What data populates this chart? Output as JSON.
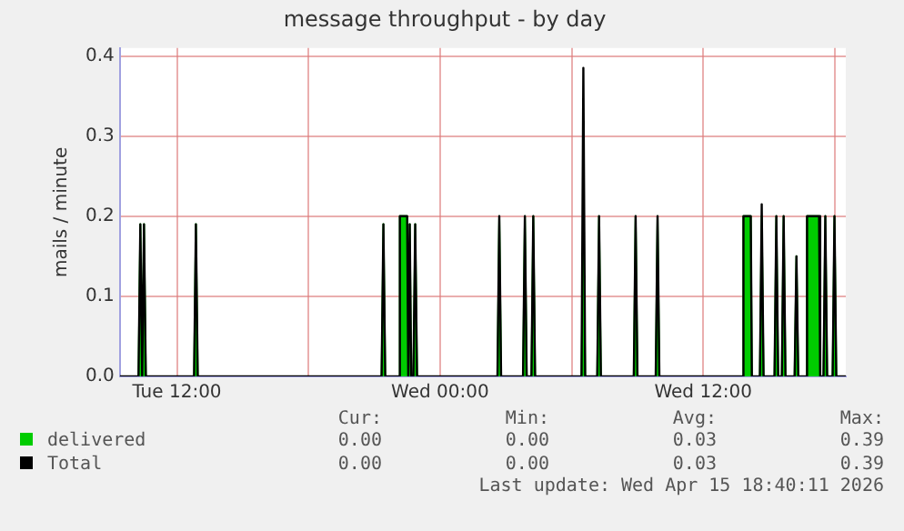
{
  "chart_data": {
    "type": "line",
    "title": "message throughput - by day",
    "ylabel": "mails / minute",
    "x": [
      "2026-04-14T09:24",
      "2026-04-14T10:15",
      "2026-04-14T10:20",
      "2026-04-14T10:25",
      "2026-04-14T10:25",
      "2026-04-14T10:30",
      "2026-04-14T10:35",
      "2026-04-14T12:47",
      "2026-04-14T12:52",
      "2026-04-14T12:57",
      "2026-04-14T21:20",
      "2026-04-14T21:25",
      "2026-04-14T21:30",
      "2026-04-14T22:07",
      "2026-04-14T22:10",
      "2026-04-14T22:30",
      "2026-04-14T22:33",
      "2026-04-14T22:34",
      "2026-04-14T22:37",
      "2026-04-14T22:41",
      "2026-04-14T22:47",
      "2026-04-14T22:52",
      "2026-04-14T22:57",
      "2026-04-15T02:37",
      "2026-04-15T02:42",
      "2026-04-15T02:47",
      "2026-04-15T03:47",
      "2026-04-15T03:52",
      "2026-04-15T03:57",
      "2026-04-15T04:10",
      "2026-04-15T04:15",
      "2026-04-15T04:20",
      "2026-04-15T06:27",
      "2026-04-15T06:32",
      "2026-04-15T06:37",
      "2026-04-15T07:10",
      "2026-04-15T07:15",
      "2026-04-15T07:20",
      "2026-04-15T08:50",
      "2026-04-15T08:55",
      "2026-04-15T09:00",
      "2026-04-15T09:50",
      "2026-04-15T09:55",
      "2026-04-15T10:00",
      "2026-04-15T13:47",
      "2026-04-15T13:50",
      "2026-04-15T14:10",
      "2026-04-15T14:13",
      "2026-04-15T14:35",
      "2026-04-15T14:40",
      "2026-04-15T14:45",
      "2026-04-15T15:15",
      "2026-04-15T15:20",
      "2026-04-15T15:25",
      "2026-04-15T15:35",
      "2026-04-15T15:40",
      "2026-04-15T15:45",
      "2026-04-15T16:10",
      "2026-04-15T16:15",
      "2026-04-15T16:20",
      "2026-04-15T16:41",
      "2026-04-15T16:44",
      "2026-04-15T17:17",
      "2026-04-15T17:20",
      "2026-04-15T17:29",
      "2026-04-15T17:34",
      "2026-04-15T17:39",
      "2026-04-15T17:54",
      "2026-04-15T17:59",
      "2026-04-15T18:04",
      "2026-04-15T18:30"
    ],
    "series": [
      {
        "name": "delivered",
        "type": "area",
        "color": "#00cc00",
        "values": [
          0,
          0,
          0.19,
          0,
          0,
          0.19,
          0,
          0,
          0.19,
          0,
          0,
          0.19,
          0,
          0,
          0.2,
          0.2,
          0,
          0,
          0.19,
          0,
          0,
          0.19,
          0,
          0,
          0.2,
          0,
          0,
          0.2,
          0,
          0,
          0.2,
          0,
          0,
          0.2,
          0,
          0,
          0.2,
          0,
          0,
          0.2,
          0,
          0,
          0.2,
          0,
          0,
          0.2,
          0.2,
          0,
          0,
          0.2,
          0,
          0,
          0.2,
          0,
          0,
          0.2,
          0,
          0,
          0.15,
          0,
          0,
          0.2,
          0.2,
          0,
          0,
          0.2,
          0,
          0,
          0.2,
          0,
          0
        ]
      },
      {
        "name": "Total",
        "color": "#000000",
        "values": [
          0,
          0,
          0.19,
          0,
          0,
          0.19,
          0,
          0,
          0.19,
          0,
          0,
          0.19,
          0,
          0,
          0.2,
          0.2,
          0,
          0,
          0.19,
          0,
          0,
          0.19,
          0,
          0,
          0.2,
          0,
          0,
          0.2,
          0,
          0,
          0.2,
          0,
          0,
          0.385,
          0,
          0,
          0.2,
          0,
          0,
          0.2,
          0,
          0,
          0.2,
          0,
          0,
          0.2,
          0.2,
          0,
          0,
          0.215,
          0,
          0,
          0.2,
          0,
          0,
          0.2,
          0,
          0,
          0.15,
          0,
          0,
          0.2,
          0.2,
          0,
          0,
          0.2,
          0,
          0,
          0.2,
          0,
          0
        ]
      }
    ],
    "xlim": [
      "2026-04-14T09:24",
      "2026-04-15T18:30"
    ],
    "xticks": [
      {
        "value": "2026-04-14T12:00",
        "label": "Tue 12:00"
      },
      {
        "value": "2026-04-14T18:00",
        "label": null
      },
      {
        "value": "2026-04-15T00:00",
        "label": "Wed 00:00"
      },
      {
        "value": "2026-04-15T06:00",
        "label": null
      },
      {
        "value": "2026-04-15T12:00",
        "label": "Wed 12:00"
      },
      {
        "value": "2026-04-15T18:00",
        "label": null
      }
    ],
    "ylim": [
      0,
      0.41
    ],
    "yticks": [
      {
        "value": 0,
        "label": "0.0"
      },
      {
        "value": 0.1,
        "label": "0.1"
      },
      {
        "value": 0.2,
        "label": "0.2"
      },
      {
        "value": 0.3,
        "label": "0.3"
      },
      {
        "value": 0.4,
        "label": "0.4"
      }
    ],
    "grid": true,
    "legend": "bottom",
    "marker": "none",
    "line_style": "solid",
    "annotations": [
      "Cur:",
      "Min:",
      "Avg:",
      "Max:",
      "0.00",
      "0.00",
      "0.03",
      "0.39",
      "0.00",
      "0.00",
      "0.03",
      "0.39",
      "Last update: Wed Apr 15 18:40:11 2026"
    ]
  }
}
